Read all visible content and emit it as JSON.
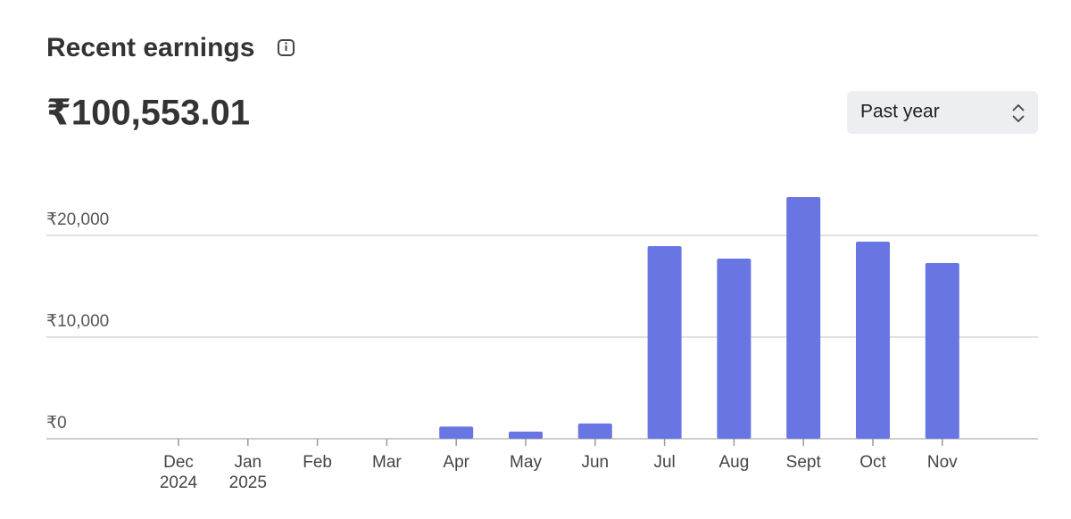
{
  "chart_data": {
    "type": "bar",
    "title": "Recent earnings",
    "total": "₹100,553.01",
    "categories": [
      "Dec",
      "Jan",
      "Feb",
      "Mar",
      "Apr",
      "May",
      "Jun",
      "Jul",
      "Aug",
      "Sept",
      "Oct",
      "Nov"
    ],
    "category_years": [
      "2024",
      "2025",
      null,
      null,
      null,
      null,
      null,
      null,
      null,
      null,
      null,
      null
    ],
    "values": [
      0,
      0,
      0,
      0,
      1200,
      700,
      1500,
      18950,
      17720,
      23770,
      19390,
      17280
    ],
    "color": "#6875e2",
    "ylim": [
      0,
      24000
    ],
    "yticks": [
      {
        "value": 0,
        "label": "₹0"
      },
      {
        "value": 10000,
        "label": "₹10,000"
      },
      {
        "value": 20000,
        "label": "₹20,000"
      }
    ],
    "grid": true
  },
  "controls": {
    "range": "Past year"
  }
}
